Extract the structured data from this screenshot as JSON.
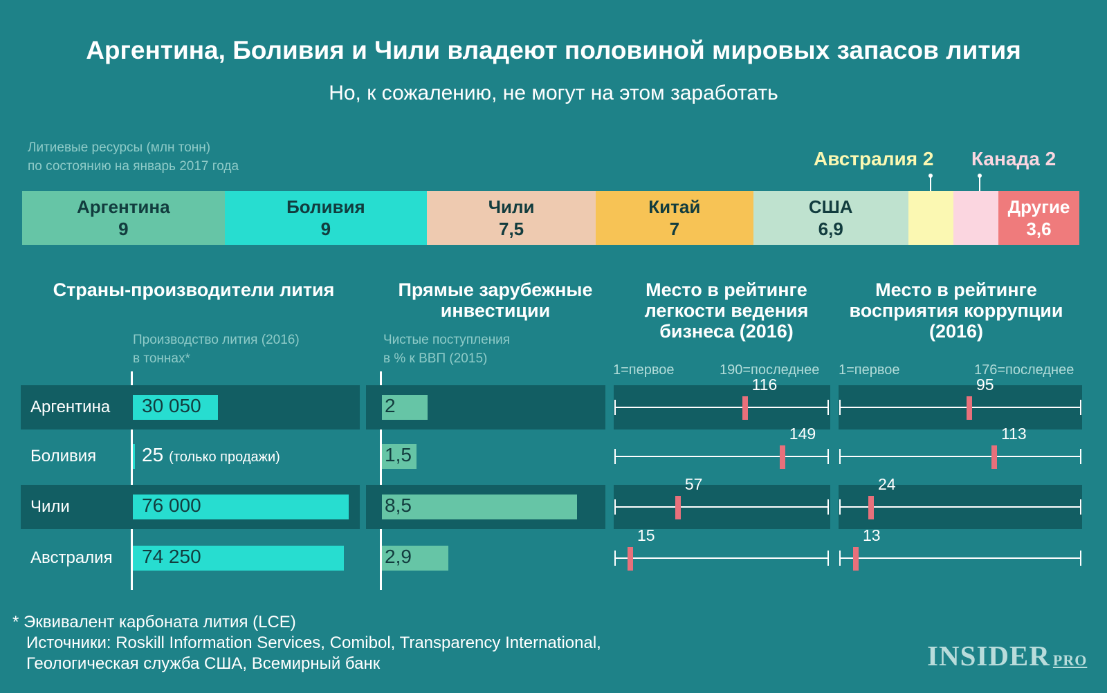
{
  "title": "Аргентина, Боливия и Чили владеют половиной мировых запасов лития",
  "subtitle": "Но, к сожалению, не могут на этом заработать",
  "resources": {
    "caption_line1": "Литиевые ресурсы (млн тонн)",
    "caption_line2": "по состоянию на январь 2017 года",
    "callouts": {
      "australia": "Австралия 2",
      "canada": "Канада 2"
    },
    "segments": [
      {
        "name": "Аргентина",
        "value_label": "9",
        "color": "#66c5a6"
      },
      {
        "name": "Боливия",
        "value_label": "9",
        "color": "#27ddd0"
      },
      {
        "name": "Чили",
        "value_label": "7,5",
        "color": "#eecab0"
      },
      {
        "name": "Китай",
        "value_label": "7",
        "color": "#f7c355"
      },
      {
        "name": "США",
        "value_label": "6,9",
        "color": "#bfe2cf"
      },
      {
        "name": "",
        "value_label": "",
        "color": "#fbf8b2"
      },
      {
        "name": "",
        "value_label": "",
        "color": "#fbd6e0"
      },
      {
        "name": "Другие",
        "value_label": "3,6",
        "color": "#ef7b7c"
      }
    ]
  },
  "columns": {
    "producers": "Страны-производители лития",
    "fdi": "Прямые зарубежные инвестиции",
    "business": "Место в рейтинге легкости ведения бизнеса (2016)",
    "corruption": "Место в рейтинге восприятия коррупции (2016)"
  },
  "captions": {
    "production_1": "Производство лития (2016)",
    "production_2": "в тоннах*",
    "fdi_1": "Чистые поступления",
    "fdi_2": "в % к ВВП (2015)",
    "business_first": "1=первое",
    "business_last": "190=последнее",
    "corruption_first": "1=первое",
    "corruption_last": "176=последнее"
  },
  "rows": [
    {
      "country": "Аргентина",
      "production_label": "30 050",
      "production_note": "",
      "fdi_label": "2",
      "business_label": "116",
      "corruption_label": "95"
    },
    {
      "country": "Боливия",
      "production_label": "25",
      "production_note": "(только продажи)",
      "fdi_label": "1,5",
      "business_label": "149",
      "corruption_label": "113"
    },
    {
      "country": "Чили",
      "production_label": "76 000",
      "production_note": "",
      "fdi_label": "8,5",
      "business_label": "57",
      "corruption_label": "24"
    },
    {
      "country": "Австралия",
      "production_label": "74 250",
      "production_note": "",
      "fdi_label": "2,9",
      "business_label": "15",
      "corruption_label": "13"
    }
  ],
  "chart_data": [
    {
      "type": "bar",
      "title": "Литиевые ресурсы (млн тонн) по состоянию на январь 2017 года",
      "categories": [
        "Аргентина",
        "Боливия",
        "Чили",
        "Китай",
        "США",
        "Австралия",
        "Канада",
        "Другие"
      ],
      "values": [
        9,
        9,
        7.5,
        7,
        6.9,
        2,
        2,
        3.6
      ]
    },
    {
      "type": "bar",
      "title": "Производство лития (2016) в тоннах*",
      "categories": [
        "Аргентина",
        "Боливия",
        "Чили",
        "Австралия"
      ],
      "values": [
        30050,
        25,
        76000,
        74250
      ]
    },
    {
      "type": "bar",
      "title": "Чистые поступления в % к ВВП (2015)",
      "categories": [
        "Аргентина",
        "Боливия",
        "Чили",
        "Австралия"
      ],
      "values": [
        2,
        1.5,
        8.5,
        2.9
      ]
    },
    {
      "type": "scatter",
      "title": "Место в рейтинге легкости ведения бизнеса (2016)",
      "categories": [
        "Аргентина",
        "Боливия",
        "Чили",
        "Австралия"
      ],
      "values": [
        116,
        149,
        57,
        15
      ],
      "range": [
        1,
        190
      ]
    },
    {
      "type": "scatter",
      "title": "Место в рейтинге восприятия коррупции (2016)",
      "categories": [
        "Аргентина",
        "Боливия",
        "Чили",
        "Австралия"
      ],
      "values": [
        95,
        113,
        24,
        13
      ],
      "range": [
        1,
        176
      ]
    }
  ],
  "footnote": {
    "line1": "* Эквивалент карбоната лития (LCE)",
    "line2": "Источники: Roskill Information Services, Comibol, Transparency International,",
    "line3": "Геологическая служба США, Всемирный банк"
  },
  "logo": {
    "main": "INSIDER",
    "suffix": "PRO"
  },
  "colors": {
    "background": "#1e8288",
    "band": "#125e63",
    "production_bar": "#27ddd0",
    "fdi_bar": "#66c5a6",
    "marker": "#e8707b"
  }
}
